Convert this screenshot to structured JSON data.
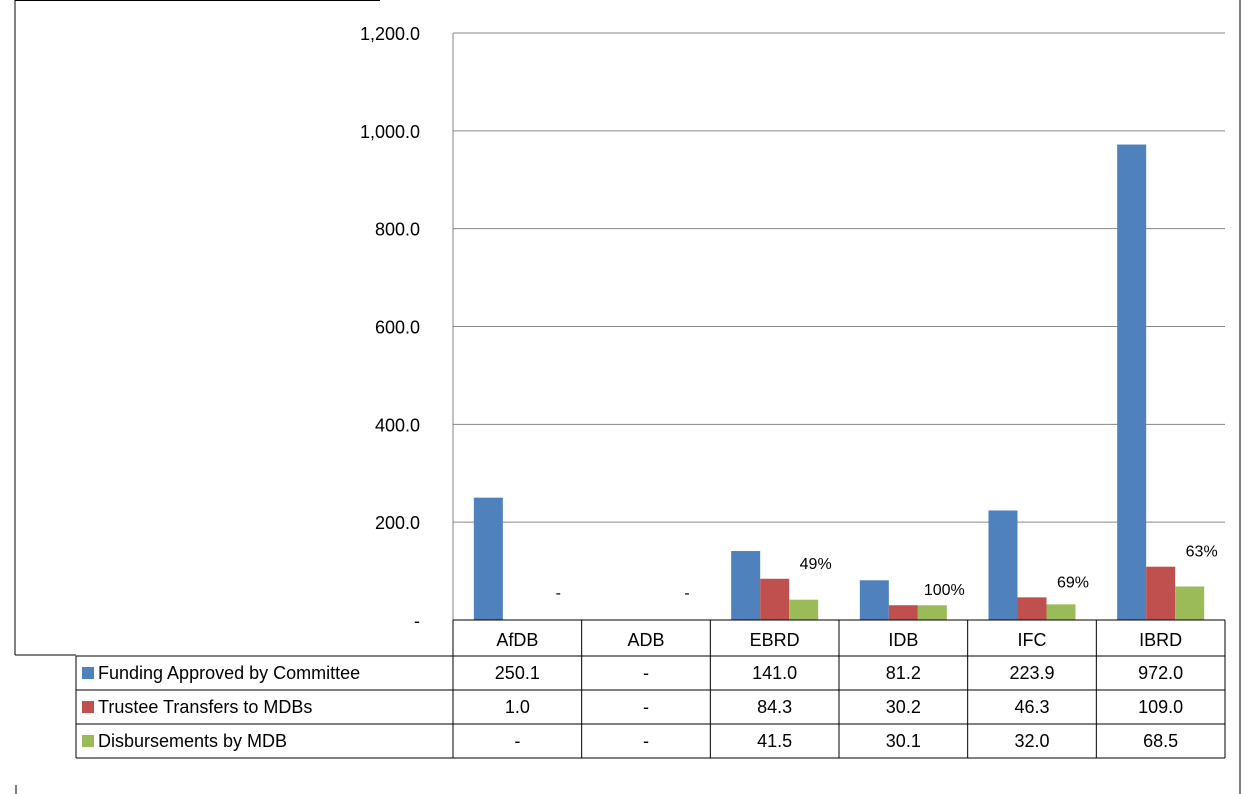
{
  "chart_data": {
    "type": "bar",
    "title": "",
    "xlabel": "",
    "ylabel": "",
    "ylim": [
      0,
      1200
    ],
    "grid": true,
    "legend": "in data table",
    "y_ticks": [
      "-",
      "200.0",
      "400.0",
      "600.0",
      "800.0",
      "1,000.0",
      "1,200.0"
    ],
    "categories": [
      "AfDB",
      "ADB",
      "EBRD",
      "IDB",
      "IFC",
      "IBRD"
    ],
    "series": [
      {
        "name": "Funding Approved by Committee",
        "color": "#4F81BD",
        "values": [
          250.1,
          0,
          141.0,
          81.2,
          223.9,
          972.0
        ],
        "labels": [
          "250.1",
          "-",
          "141.0",
          "81.2",
          "223.9",
          "972.0"
        ]
      },
      {
        "name": "Trustee Transfers to MDBs",
        "color": "#C0504D",
        "values": [
          1.0,
          0,
          84.3,
          30.2,
          46.3,
          109.0
        ],
        "labels": [
          "1.0",
          "-",
          "84.3",
          "30.2",
          "46.3",
          "109.0"
        ]
      },
      {
        "name": "Disbursements by MDB",
        "color": "#9BBB59",
        "values": [
          0,
          0,
          41.5,
          30.1,
          32.0,
          68.5
        ],
        "labels": [
          "-",
          "-",
          "41.5",
          "30.1",
          "32.0",
          "68.5"
        ]
      }
    ],
    "annotations": [
      "-",
      "-",
      "49%",
      "100%",
      "69%",
      "63%"
    ]
  }
}
